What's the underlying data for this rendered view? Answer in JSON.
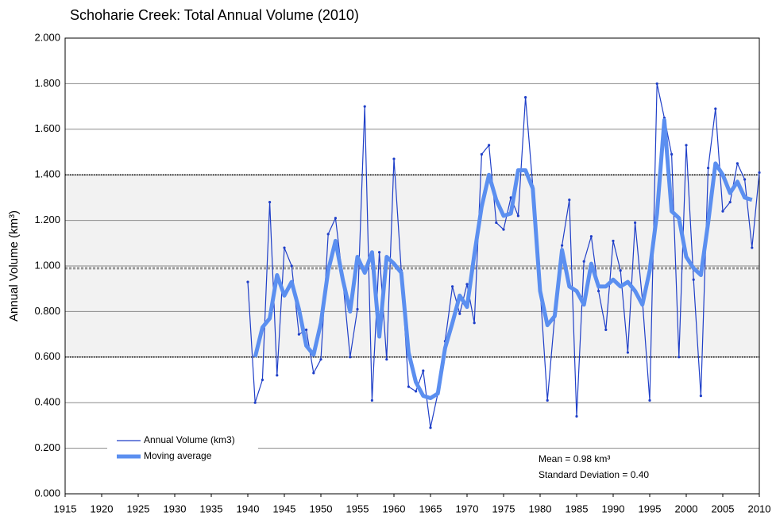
{
  "chart_data": {
    "type": "line",
    "title": "Schoharie Creek: Total Annual Volume (2010)",
    "ylabel": "Annual Volume (km³)",
    "annotations": [
      "Mean = 0.98 km³",
      "Standard Deviation = 0.40"
    ],
    "xlim": [
      1915,
      2010
    ],
    "xticks": [
      1915,
      1920,
      1925,
      1930,
      1935,
      1940,
      1945,
      1950,
      1955,
      1960,
      1965,
      1970,
      1975,
      1980,
      1985,
      1990,
      1995,
      2000,
      2005,
      2010
    ],
    "ylim": [
      0,
      2
    ],
    "yticks": [
      {
        "value": 0,
        "label": "0.000"
      },
      {
        "value": 0.2,
        "label": "0.200"
      },
      {
        "value": 0.4,
        "label": "0.400"
      },
      {
        "value": 0.6,
        "label": "0.600"
      },
      {
        "value": 0.8,
        "label": "0.800"
      },
      {
        "value": 1.0,
        "label": "1.000"
      },
      {
        "value": 1.2,
        "label": "1.200"
      },
      {
        "value": 1.4,
        "label": "1.400"
      },
      {
        "value": 1.6,
        "label": "1.600"
      },
      {
        "value": 1.8,
        "label": "1.800"
      },
      {
        "value": 2.0,
        "label": "2.000"
      }
    ],
    "grid": true,
    "band": [
      0.6,
      1.4
    ],
    "mean_line": 0.99,
    "legend": "lower-left",
    "series": [
      {
        "name": "Annual Volume (km3)",
        "color": "#1f3fc8",
        "x": [
          1940,
          1941,
          1942,
          1943,
          1944,
          1945,
          1946,
          1947,
          1948,
          1949,
          1950,
          1951,
          1952,
          1953,
          1954,
          1955,
          1956,
          1957,
          1958,
          1959,
          1960,
          1961,
          1962,
          1963,
          1964,
          1965,
          1966,
          1967,
          1968,
          1969,
          1970,
          1971,
          1972,
          1973,
          1974,
          1975,
          1976,
          1977,
          1978,
          1979,
          1980,
          1981,
          1982,
          1983,
          1984,
          1985,
          1986,
          1987,
          1988,
          1989,
          1990,
          1991,
          1992,
          1993,
          1994,
          1995,
          1996,
          1997,
          1998,
          1999,
          2000,
          2001,
          2002,
          2003,
          2004,
          2005,
          2006,
          2007,
          2008,
          2009,
          2010
        ],
        "values": [
          0.93,
          0.4,
          0.5,
          1.28,
          0.52,
          1.08,
          1.0,
          0.7,
          0.72,
          0.53,
          0.59,
          1.14,
          1.21,
          0.94,
          0.6,
          0.81,
          1.7,
          0.41,
          1.06,
          0.59,
          1.47,
          0.98,
          0.47,
          0.45,
          0.54,
          0.29,
          0.44,
          0.67,
          0.91,
          0.79,
          0.92,
          0.75,
          1.49,
          1.53,
          1.19,
          1.16,
          1.3,
          1.22,
          1.74,
          1.35,
          0.9,
          0.41,
          0.78,
          1.09,
          1.29,
          0.34,
          1.02,
          1.13,
          0.89,
          0.72,
          1.11,
          0.98,
          0.62,
          1.19,
          0.85,
          0.41,
          1.8,
          1.65,
          1.49,
          0.6,
          1.53,
          0.94,
          0.43,
          1.43,
          1.69,
          1.24,
          1.28,
          1.45,
          1.38,
          1.08,
          1.41
        ]
      },
      {
        "name": "Moving average",
        "color": "#5b8ff0",
        "x": [
          1941,
          1942,
          1943,
          1944,
          1945,
          1946,
          1947,
          1948,
          1949,
          1950,
          1951,
          1952,
          1953,
          1954,
          1955,
          1956,
          1957,
          1958,
          1959,
          1960,
          1961,
          1962,
          1963,
          1964,
          1965,
          1966,
          1967,
          1968,
          1969,
          1970,
          1971,
          1972,
          1973,
          1974,
          1975,
          1976,
          1977,
          1978,
          1979,
          1980,
          1981,
          1982,
          1983,
          1984,
          1985,
          1986,
          1987,
          1988,
          1989,
          1990,
          1991,
          1992,
          1993,
          1994,
          1995,
          1996,
          1997,
          1998,
          1999,
          2000,
          2001,
          2002,
          2003,
          2004,
          2005,
          2006,
          2007,
          2008,
          2009
        ],
        "values": [
          0.6,
          0.73,
          0.77,
          0.96,
          0.87,
          0.93,
          0.81,
          0.65,
          0.61,
          0.75,
          0.98,
          1.11,
          0.94,
          0.8,
          1.04,
          0.97,
          1.06,
          0.69,
          1.04,
          1.01,
          0.97,
          0.62,
          0.49,
          0.43,
          0.42,
          0.44,
          0.64,
          0.75,
          0.87,
          0.82,
          1.05,
          1.26,
          1.4,
          1.29,
          1.22,
          1.23,
          1.42,
          1.42,
          1.34,
          0.89,
          0.74,
          0.78,
          1.07,
          0.91,
          0.89,
          0.83,
          1.01,
          0.91,
          0.91,
          0.94,
          0.91,
          0.93,
          0.89,
          0.83,
          0.98,
          1.23,
          1.64,
          1.24,
          1.21,
          1.04,
          0.99,
          0.96,
          1.19,
          1.45,
          1.4,
          1.32,
          1.37,
          1.3,
          1.29
        ]
      }
    ]
  }
}
